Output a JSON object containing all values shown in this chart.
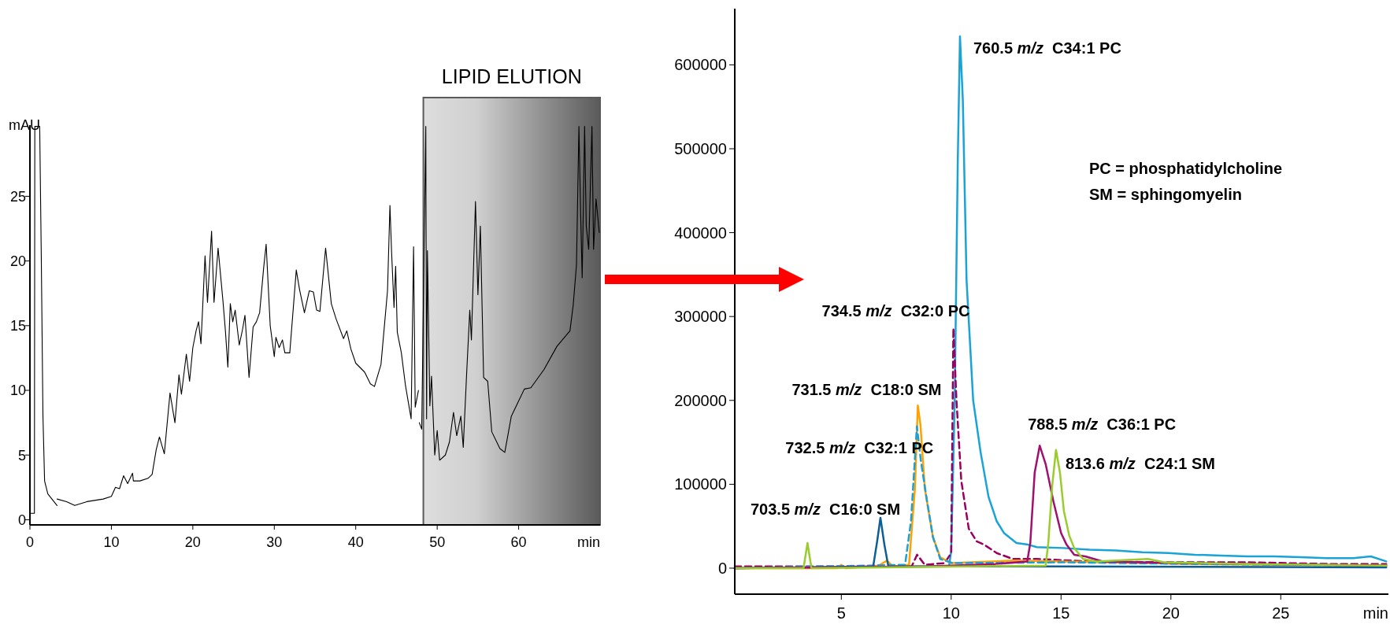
{
  "chart_data": [
    {
      "type": "line",
      "xlabel": "min",
      "ylabel": "mAU",
      "xlim": [
        0,
        70
      ],
      "ylim": [
        -0.4,
        30.5
      ],
      "xticks": [
        0,
        10,
        20,
        30,
        40,
        50,
        60
      ],
      "yticks": [
        0,
        5,
        10,
        15,
        20,
        25
      ],
      "series": [
        {
          "color": "#000000",
          "x": [
            0,
            0.55,
            0.6,
            1.2,
            1.4,
            1.6,
            1.8,
            2.2,
            3.33,
            3.335,
            3.34,
            4.5,
            5.5,
            7,
            9,
            10,
            10.5,
            11,
            11.5,
            12,
            12.6,
            12.7,
            13.5,
            14.5,
            15,
            15.5,
            15.9,
            16.5,
            17.2,
            17.8,
            18.3,
            18.6,
            19.2,
            19.6,
            20,
            20.4,
            20.7,
            21,
            21.5,
            21.8,
            22.3,
            22.6,
            23.1,
            23.7,
            24,
            24.3,
            24.6,
            24.9,
            25.2,
            25.7,
            26.1,
            26.4,
            26.9,
            27.4,
            27.8,
            28.2,
            28.7,
            29,
            29.5,
            30,
            30.2,
            30.6,
            31,
            31.3,
            31.9,
            32.7,
            33.1,
            33.7,
            34.3,
            34.8,
            35.2,
            35.6,
            36.3,
            37,
            37.6,
            38.5,
            38.9,
            39.4,
            40,
            41.1,
            41.8,
            42.3,
            43.1,
            43.9,
            44.2,
            44.4,
            44.7,
            44.9,
            45.1,
            45.6,
            46.1,
            46.8,
            47.1,
            47.3,
            47.7,
            47.75,
            47.8,
            48.1,
            48.6,
            48.7,
            48.8,
            49.1,
            49.3,
            49.7,
            50,
            50.3,
            51,
            51.5,
            52,
            52.4,
            52.9,
            53.2,
            53.6,
            54,
            54.2,
            54.7,
            55,
            55.3,
            55.7,
            56.2,
            56.7,
            57.7,
            58.3,
            59.1,
            60.7,
            61.5,
            63.1,
            64.7,
            66.3,
            66.7,
            67.1,
            67.4,
            67.6,
            67.8,
            68.1,
            68.3,
            68.6,
            69,
            69.2,
            69.5,
            69.9
          ],
          "values": [
            0.5,
            0.5,
            30.4,
            30.4,
            20,
            8,
            3,
            2,
            1.1,
            null,
            1.6,
            1.4,
            1.1,
            1.4,
            1.6,
            1.8,
            2.5,
            2.4,
            3.4,
            2.8,
            3.6,
            3,
            3,
            3.2,
            3.5,
            5.4,
            6.4,
            5.1,
            9.8,
            7.5,
            11.2,
            9.7,
            12.8,
            10.7,
            13.3,
            14.6,
            15.3,
            13.6,
            20.4,
            16.8,
            22.3,
            16.8,
            21,
            16.9,
            14.6,
            11.8,
            16.7,
            15.3,
            16.2,
            13.5,
            14.7,
            15.8,
            11,
            14.9,
            15.3,
            16,
            19.5,
            21.3,
            15,
            12.6,
            14.1,
            13.3,
            13.9,
            12.9,
            12.9,
            19.3,
            17.8,
            16,
            17.7,
            17.6,
            16.2,
            16.1,
            21,
            16.7,
            15.5,
            14,
            14.6,
            13.2,
            12.1,
            11.4,
            10.5,
            10.3,
            12,
            17.7,
            24.3,
            20.7,
            16.4,
            19.6,
            14.5,
            12.9,
            10.4,
            7.8,
            21.1,
            8.7,
            10,
            null,
            7.5,
            7,
            30.4,
            7.8,
            20.8,
            8.8,
            11.1,
            5,
            6.9,
            4.6,
            5,
            6,
            8.3,
            6.5,
            8,
            5.6,
            11.1,
            16.2,
            13.9,
            24.6,
            17.4,
            22.7,
            11,
            10.7,
            6.8,
            5.5,
            5.2,
            8,
            10.1,
            10.2,
            11.6,
            13.4,
            14.6,
            16.6,
            19.7,
            30.4,
            24,
            18.7,
            30.4,
            22.7,
            20.9,
            30.4,
            20.9,
            24.8,
            22.2
          ]
        }
      ],
      "bands": [
        {
          "axis": "x",
          "from": 48.3,
          "to": 70,
          "label": "LIPID ELUTION",
          "color": "#5a5a5a"
        }
      ]
    },
    {
      "type": "line",
      "xlabel": "min",
      "xlim": [
        0.15,
        29.9
      ],
      "ylim": [
        -31000,
        667000
      ],
      "xticks": [
        5,
        10,
        15,
        20,
        25
      ],
      "yticks": [
        0,
        100000,
        200000,
        300000,
        400000,
        500000,
        600000
      ],
      "series": [
        {
          "color": "#1aa3d6",
          "line_style": "solid",
          "x": [
            0.15,
            9.9,
            10.0,
            10.16,
            10.3,
            10.4,
            10.53,
            10.7,
            11.0,
            11.34,
            11.7,
            12.07,
            12.4,
            12.97,
            13.5,
            13.9,
            15.1,
            16.3,
            17.5,
            18.7,
            19.9,
            21.1,
            22.3,
            23.5,
            24.7,
            25.9,
            27.1,
            28.3,
            29.1,
            29.8
          ],
          "values": [
            0,
            2000,
            20000,
            200000,
            486000,
            634000,
            558000,
            343000,
            200000,
            138000,
            85000,
            56000,
            42000,
            30000,
            28000,
            25000,
            24000,
            22000,
            21000,
            19000,
            18000,
            16000,
            15000,
            14000,
            14000,
            13000,
            12000,
            12000,
            14000,
            8000
          ]
        },
        {
          "color": "#99005f",
          "line_style": "dashed",
          "x": [
            0.15,
            8.2,
            8.45,
            8.8,
            9.7,
            10.0,
            10.1,
            10.24,
            10.46,
            10.8,
            11.16,
            11.5,
            12.07,
            12.8,
            13.9,
            16.3,
            19.9,
            23.5,
            27.1,
            29.8
          ],
          "values": [
            2000,
            2000,
            16000,
            4000,
            6000,
            18000,
            286000,
            200000,
            104000,
            47000,
            32000,
            28000,
            18000,
            11000,
            11000,
            8000,
            7000,
            7000,
            5000,
            5000
          ]
        },
        {
          "color": "#ffa200",
          "line_style": "solid",
          "x": [
            0.15,
            4.8,
            5.0,
            5.2,
            6.7,
            7.08,
            7.35,
            8.08,
            8.35,
            8.48,
            8.6,
            8.8,
            9.17,
            9.5,
            10.0,
            12.8,
            15.1,
            21.1,
            29.8
          ],
          "values": [
            0,
            0,
            4000,
            0,
            3000,
            9000,
            2000,
            4000,
            95000,
            194000,
            171000,
            95000,
            37000,
            13000,
            6000,
            9000,
            8000,
            5000,
            3000
          ]
        },
        {
          "color": "#1ea0d2",
          "line_style": "dashed",
          "x": [
            0.15,
            7.9,
            8.17,
            8.44,
            8.62,
            8.9,
            9.17,
            9.5,
            10.07,
            15.1,
            21.1,
            29.8
          ],
          "values": [
            0,
            4000,
            56000,
            169000,
            128000,
            80000,
            37000,
            11000,
            6000,
            7000,
            5000,
            3000
          ]
        },
        {
          "color": "#0b5e96",
          "line_style": "solid",
          "x": [
            0.15,
            6.45,
            6.63,
            6.78,
            6.96,
            7.14,
            14.6,
            29.8
          ],
          "values": [
            0,
            2000,
            32000,
            60000,
            28000,
            2000,
            2000,
            1000
          ]
        },
        {
          "color": "#a0106e",
          "line_style": "solid",
          "x": [
            0.15,
            9,
            12,
            13.46,
            13.6,
            13.8,
            14.03,
            14.3,
            14.65,
            15.0,
            15.25,
            15.6,
            16.1,
            16.9,
            18.7,
            23.5,
            29.8
          ],
          "values": [
            0,
            2000,
            5000,
            8000,
            30000,
            114000,
            146000,
            124000,
            80000,
            42000,
            28000,
            16000,
            14000,
            8000,
            7000,
            5000,
            3000
          ]
        },
        {
          "color": "#99cc2e",
          "line_style": "solid",
          "x": [
            0.15,
            3.28,
            3.46,
            3.64,
            14.3,
            14.42,
            14.6,
            14.77,
            14.95,
            15.13,
            15.37,
            15.6,
            16.0,
            16.6,
            18.95,
            19.7,
            23.5,
            29.8
          ],
          "values": [
            0,
            0,
            30000,
            0,
            3000,
            30000,
            99000,
            141000,
            114000,
            68000,
            39000,
            24000,
            11000,
            8000,
            11000,
            7000,
            5000,
            3000
          ]
        }
      ],
      "annotations": [
        {
          "text": "760.5 m/z C34:1 PC",
          "x": 10.4,
          "y": 634000
        },
        {
          "text": "734.5 m/z C32:0 PC",
          "x": 10.1,
          "y": 286000
        },
        {
          "text": "731.5 m/z C18:0 SM",
          "x": 8.48,
          "y": 194000
        },
        {
          "text": "732.5 m/z C32:1 PC",
          "x": 8.44,
          "y": 169000
        },
        {
          "text": "703.5 m/z C16:0 SM",
          "x": 6.78,
          "y": 60000
        },
        {
          "text": "788.5 m/z C36:1 PC",
          "x": 14.03,
          "y": 146000
        },
        {
          "text": "813.6 m/z C24:1 SM",
          "x": 14.77,
          "y": 141000
        },
        "PC = phosphatidylcholine",
        "SM = sphingomyelin"
      ]
    }
  ]
}
